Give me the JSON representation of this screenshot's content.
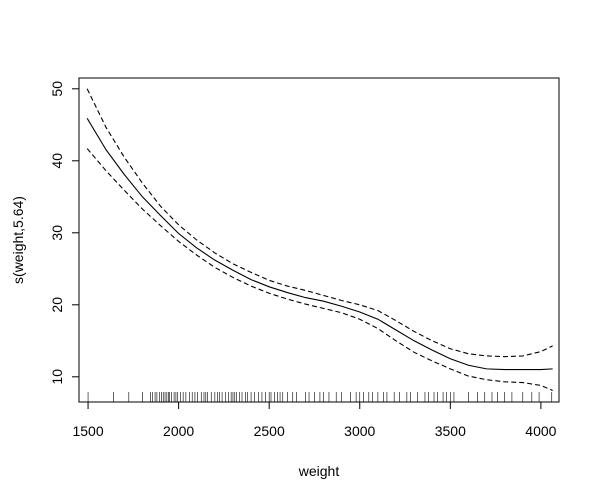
{
  "chart_data": {
    "type": "line",
    "title": "",
    "xlabel": "weight",
    "ylabel": "s(weight,5.64)",
    "xlim": [
      1450,
      4100
    ],
    "ylim": [
      6.5,
      51.5
    ],
    "x_ticks": [
      1500,
      2000,
      2500,
      3000,
      3500,
      4000
    ],
    "y_ticks": [
      10,
      20,
      30,
      40,
      50
    ],
    "grid": false,
    "legend": "none",
    "colors": {
      "line": "#000000",
      "background": "#ffffff"
    },
    "series": [
      {
        "role": "estimate",
        "line_style": "solid",
        "x": [
          1495,
          1600,
          1700,
          1800,
          1900,
          2000,
          2100,
          2200,
          2300,
          2400,
          2500,
          2600,
          2700,
          2800,
          2900,
          3000,
          3100,
          3200,
          3300,
          3400,
          3500,
          3600,
          3700,
          3800,
          3900,
          4000,
          4065
        ],
        "y": [
          45.9,
          41.5,
          38.1,
          35.0,
          32.4,
          29.9,
          27.9,
          26.2,
          24.8,
          23.5,
          22.5,
          21.7,
          21.0,
          20.5,
          19.8,
          19.0,
          18.0,
          16.5,
          15.0,
          13.7,
          12.5,
          11.6,
          11.1,
          11.0,
          11.0,
          11.0,
          11.1
        ]
      },
      {
        "role": "upper band",
        "line_style": "dashed",
        "x": [
          1495,
          1600,
          1700,
          1800,
          1900,
          2000,
          2100,
          2200,
          2300,
          2400,
          2500,
          2600,
          2700,
          2800,
          2900,
          3000,
          3100,
          3200,
          3300,
          3400,
          3500,
          3600,
          3700,
          3800,
          3900,
          4000,
          4065
        ],
        "y": [
          50.0,
          44.6,
          40.5,
          36.9,
          33.7,
          31.1,
          29.0,
          27.2,
          25.7,
          24.5,
          23.4,
          22.6,
          22.0,
          21.3,
          20.6,
          20.0,
          19.2,
          17.8,
          16.3,
          15.0,
          13.9,
          13.2,
          12.9,
          12.8,
          12.9,
          13.5,
          14.3
        ]
      },
      {
        "role": "lower band",
        "line_style": "dashed",
        "x": [
          1495,
          1600,
          1700,
          1800,
          1900,
          2000,
          2100,
          2200,
          2300,
          2400,
          2500,
          2600,
          2700,
          2800,
          2900,
          3000,
          3100,
          3200,
          3300,
          3400,
          3500,
          3600,
          3700,
          3800,
          3900,
          4000,
          4065
        ],
        "y": [
          41.7,
          38.6,
          35.9,
          33.3,
          31.0,
          28.8,
          26.9,
          25.2,
          23.8,
          22.6,
          21.6,
          20.8,
          20.1,
          19.5,
          18.9,
          18.0,
          16.7,
          15.0,
          13.4,
          12.2,
          11.1,
          10.1,
          9.6,
          9.3,
          9.2,
          8.8,
          8.1
        ]
      }
    ],
    "rug": [
      1500,
      1640,
      1725,
      1800,
      1845,
      1855,
      1870,
      1880,
      1895,
      1905,
      1915,
      1925,
      1935,
      1945,
      1950,
      1960,
      1975,
      1985,
      1995,
      2010,
      2025,
      2040,
      2060,
      2075,
      2090,
      2105,
      2125,
      2140,
      2150,
      2160,
      2180,
      2200,
      2215,
      2225,
      2240,
      2260,
      2275,
      2290,
      2300,
      2310,
      2320,
      2335,
      2350,
      2370,
      2380,
      2400,
      2420,
      2440,
      2460,
      2480,
      2500,
      2510,
      2530,
      2545,
      2560,
      2575,
      2600,
      2630,
      2650,
      2700,
      2720,
      2750,
      2780,
      2800,
      2830,
      2870,
      2900,
      2950,
      2980,
      3000,
      3020,
      3050,
      3070,
      3100,
      3130,
      3150,
      3190,
      3220,
      3260,
      3280,
      3320,
      3360,
      3380,
      3410,
      3430,
      3460,
      3480,
      3500,
      3520,
      3600,
      3650,
      3690,
      3730,
      3760,
      3800,
      3840,
      3900,
      3950,
      3990,
      4060
    ]
  }
}
